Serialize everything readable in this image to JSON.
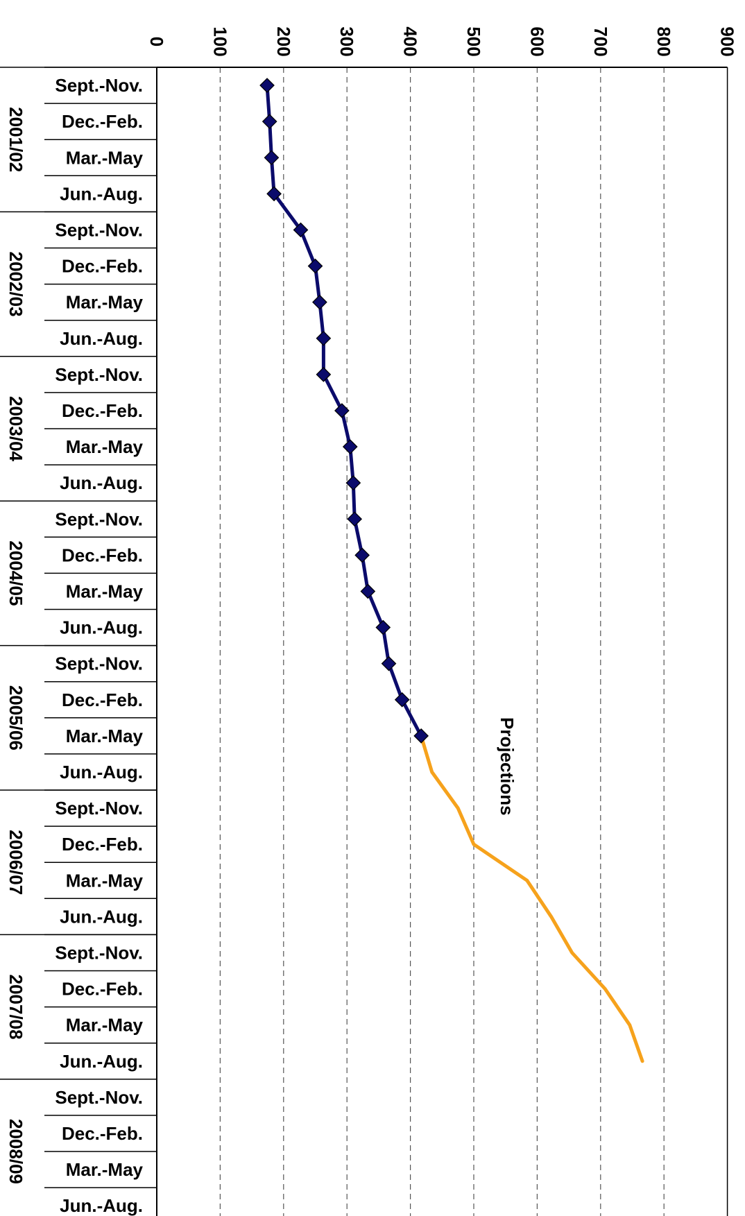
{
  "chart_data": {
    "type": "line",
    "orientation": "rotated",
    "value_axis": {
      "range": [
        0,
        900
      ],
      "ticks": [
        "0",
        "100",
        "200",
        "300",
        "400",
        "500",
        "600",
        "700",
        "800",
        "900"
      ]
    },
    "groups": [
      {
        "label": "2001/02",
        "seasons": [
          "Sept.-Nov.",
          "Dec.-Feb.",
          "Mar.-May",
          "Jun.-Aug."
        ]
      },
      {
        "label": "2002/03",
        "seasons": [
          "Sept.-Nov.",
          "Dec.-Feb.",
          "Mar.-May",
          "Jun.-Aug."
        ]
      },
      {
        "label": "2003/04",
        "seasons": [
          "Sept.-Nov.",
          "Dec.-Feb.",
          "Mar.-May",
          "Jun.-Aug."
        ]
      },
      {
        "label": "2004/05",
        "seasons": [
          "Sept.-Nov.",
          "Dec.-Feb.",
          "Mar.-May",
          "Jun.-Aug."
        ]
      },
      {
        "label": "2005/06",
        "seasons": [
          "Sept.-Nov.",
          "Dec.-Feb.",
          "Mar.-May",
          "Jun.-Aug."
        ]
      },
      {
        "label": "2006/07",
        "seasons": [
          "Sept.-Nov.",
          "Dec.-Feb.",
          "Mar.-May",
          "Jun.-Aug."
        ]
      },
      {
        "label": "2007/08",
        "seasons": [
          "Sept.-Nov.",
          "Dec.-Feb.",
          "Mar.-May",
          "Jun.-Aug."
        ]
      },
      {
        "label": "2008/09",
        "seasons": [
          "Sept.-Nov.",
          "Dec.-Feb.",
          "Mar.-May",
          "Jun.-Aug."
        ]
      }
    ],
    "series": [
      {
        "style": "actual",
        "color": "#0b0b6b",
        "marker": "diamond",
        "start_index": 0,
        "values": [
          174,
          178,
          181,
          185,
          227,
          250,
          257,
          263,
          263,
          292,
          305,
          310,
          312,
          324,
          333,
          357,
          366,
          387,
          417
        ]
      },
      {
        "style": "projection",
        "color": "#f6a21c",
        "marker": "none",
        "start_index": 18,
        "values": [
          417,
          434,
          475,
          500,
          584,
          622,
          655,
          707,
          746,
          766
        ]
      }
    ],
    "annotations": [
      {
        "text": "Projections"
      }
    ],
    "grid": true,
    "grid_style": "dashed-vertical"
  }
}
